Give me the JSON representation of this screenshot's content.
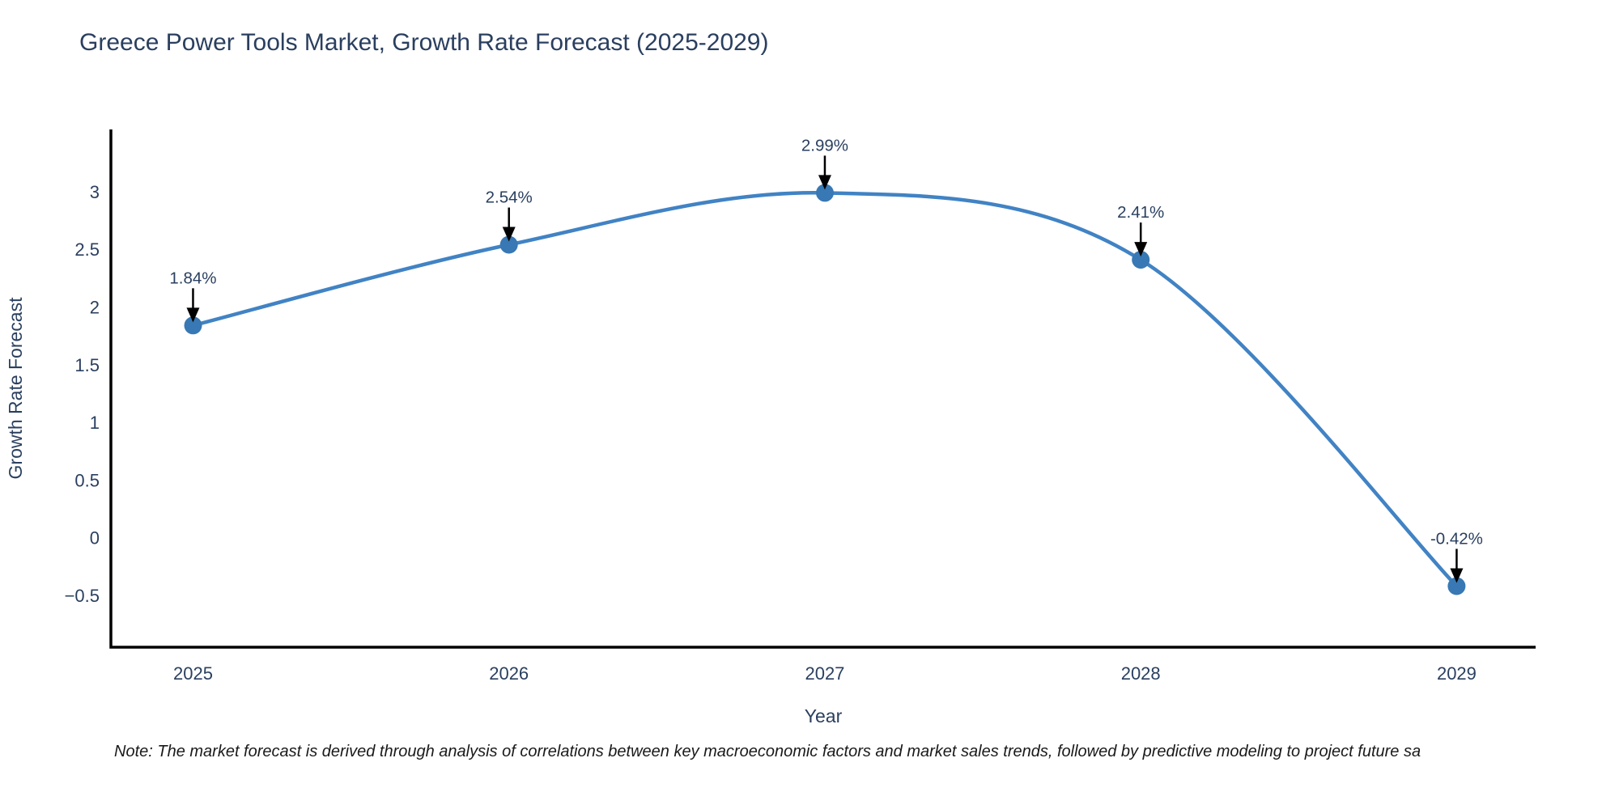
{
  "header": {
    "title": "Greece Power Tools Market, Growth Rate Forecast (2025-2029)"
  },
  "footnote": {
    "text": "Note: The market forecast is derived through analysis of correlations between key macroeconomic factors and market sales trends, followed by predictive modeling to project future sa"
  },
  "chart_data": {
    "type": "line",
    "title": "Greece Power Tools Market, Growth Rate Forecast (2025-2029)",
    "xlabel": "Year",
    "ylabel": "Growth Rate Forecast",
    "x": [
      2025,
      2026,
      2027,
      2028,
      2029
    ],
    "series": [
      {
        "name": "Growth Rate Forecast",
        "values": [
          1.84,
          2.54,
          2.99,
          2.41,
          -0.42
        ]
      }
    ],
    "point_labels": [
      "1.84%",
      "2.54%",
      "2.99%",
      "2.41%",
      "-0.42%"
    ],
    "x_tick_labels": [
      "2025",
      "2026",
      "2027",
      "2028",
      "2029"
    ],
    "y_tick_values": [
      3,
      2.5,
      2,
      1.5,
      1,
      0.5,
      0,
      -0.5
    ],
    "y_tick_labels": [
      "3",
      "2.5",
      "2",
      "1.5",
      "1",
      "0.5",
      "0",
      "−0.5"
    ],
    "xlim": [
      2024.74,
      2029.25
    ],
    "ylim": [
      -0.95,
      3.54
    ],
    "line_shape": "spline",
    "grid": false,
    "legend_position": "none",
    "annotation_arrows": true,
    "colors": {
      "line": "#4183c4",
      "marker": "#3878b4",
      "axis": "#000000",
      "text": "#2a3f5f",
      "annotation_text": "#2a3f5f",
      "arrow": "#000000",
      "background": "#ffffff"
    }
  }
}
